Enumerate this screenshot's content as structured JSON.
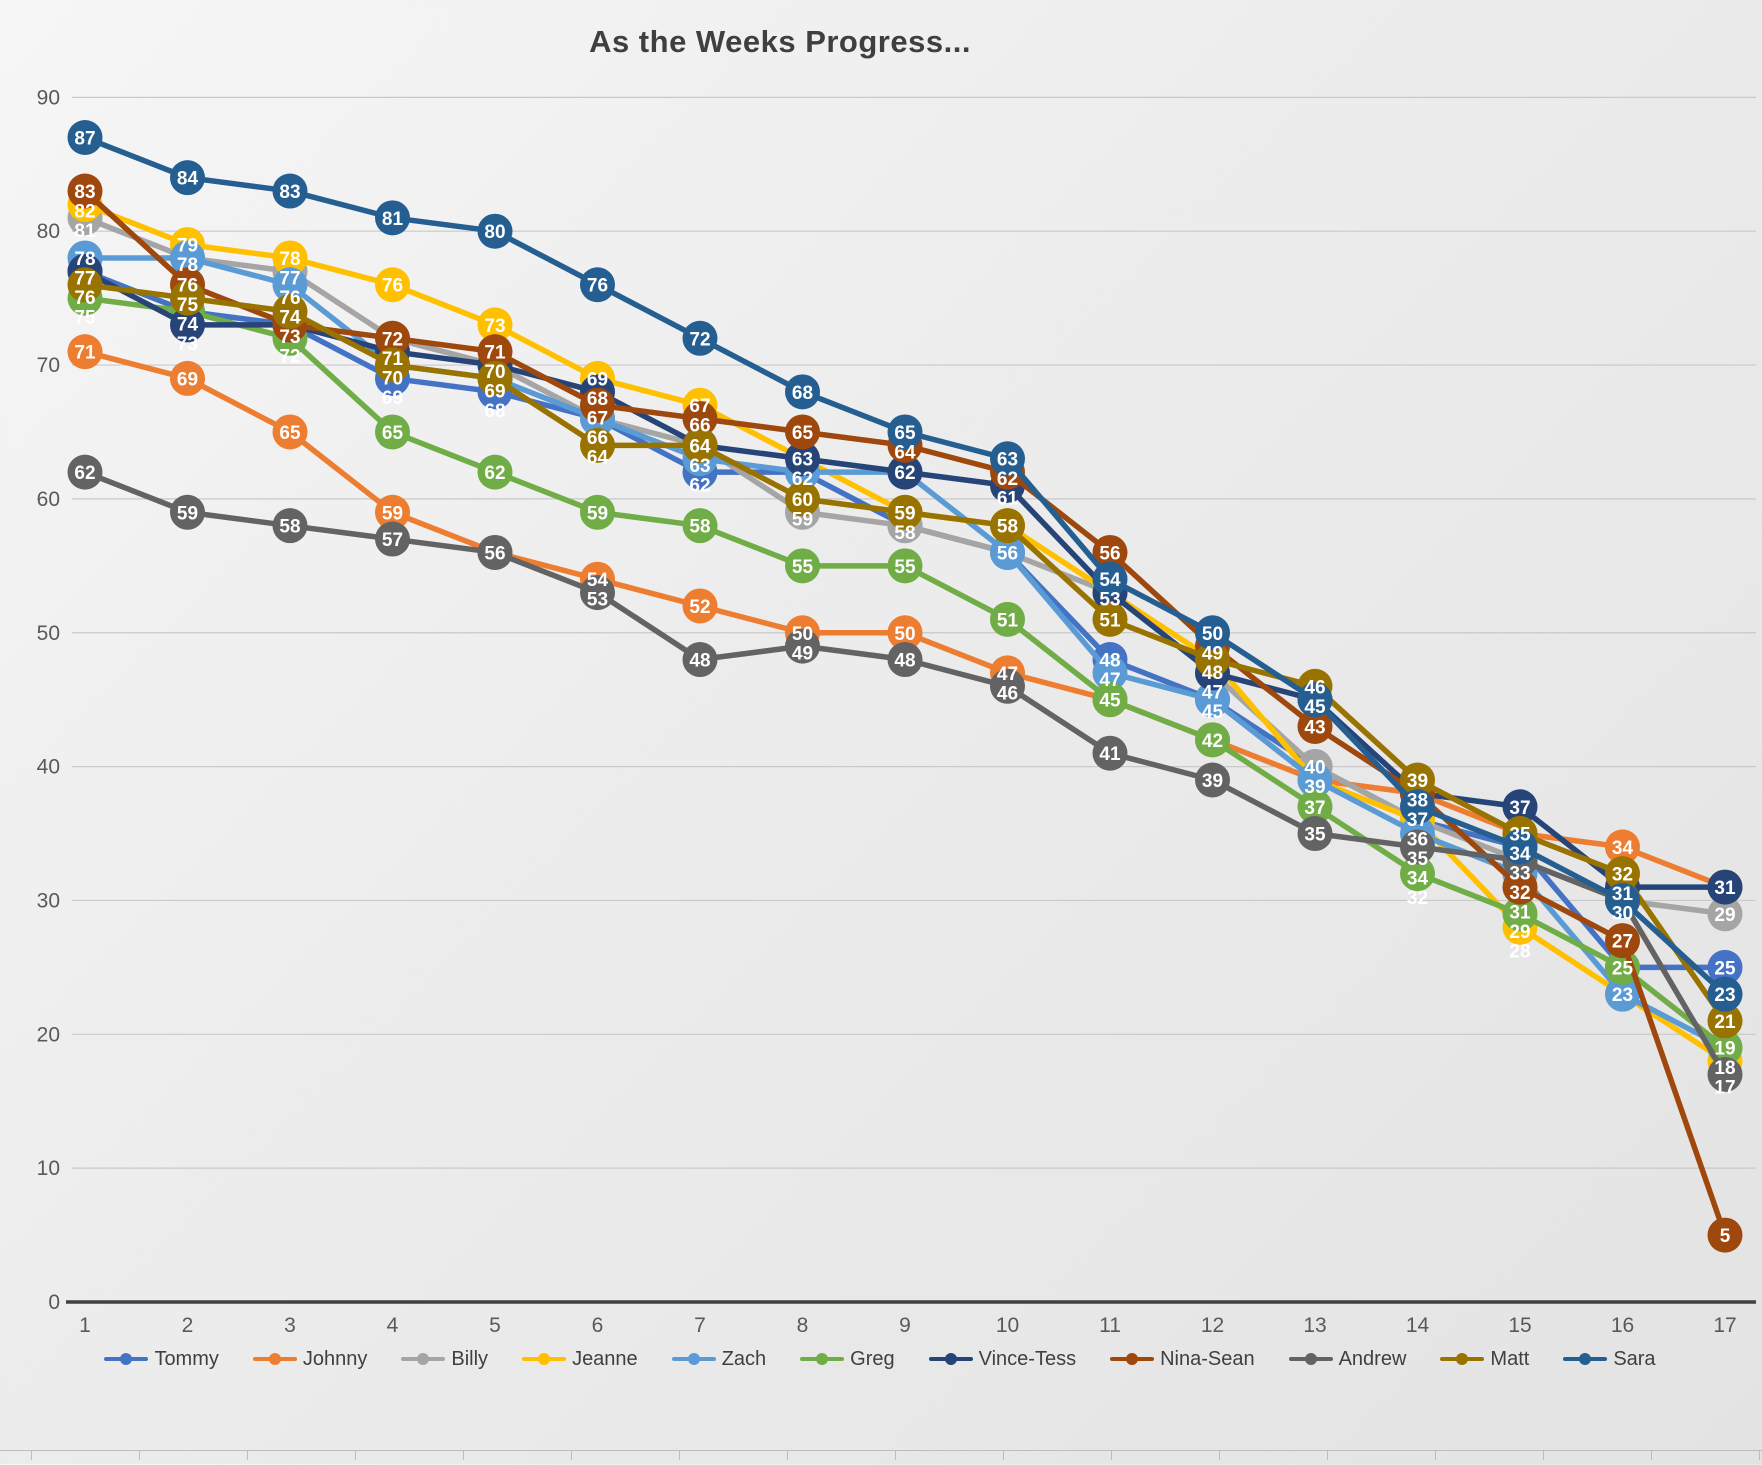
{
  "title": "As the Weeks Progress...",
  "axes": {
    "y_ticks": [
      "0",
      "10",
      "20",
      "30",
      "40",
      "50",
      "60",
      "70",
      "80",
      "90"
    ],
    "x_ticks": [
      "1",
      "2",
      "3",
      "4",
      "5",
      "6",
      "7",
      "8",
      "9",
      "10",
      "11",
      "12",
      "13",
      "14",
      "15",
      "16",
      "17"
    ]
  },
  "colors": {
    "grid": "#c9c9c9",
    "axis_line": "#404040",
    "tick_label": "#595959",
    "data_label": "#ffffff"
  },
  "chart_data": {
    "type": "line",
    "title": "As the Weeks Progress...",
    "xlabel": "",
    "ylabel": "",
    "x": [
      1,
      2,
      3,
      4,
      5,
      6,
      7,
      8,
      9,
      10,
      11,
      12,
      13,
      14,
      15,
      16,
      17
    ],
    "ylim": [
      0,
      90
    ],
    "grid": true,
    "legend_position": "bottom",
    "marker_style": "large-circle-with-value-label",
    "series": [
      {
        "name": "Tommy",
        "color": "#4472C4",
        "values": [
          77,
          74,
          73,
          69,
          68,
          66,
          62,
          62,
          58,
          56,
          48,
          45,
          40,
          36,
          34,
          25,
          25
        ]
      },
      {
        "name": "Johnny",
        "color": "#ED7D31",
        "values": [
          71,
          69,
          65,
          59,
          56,
          54,
          52,
          50,
          50,
          47,
          45,
          42,
          39,
          38,
          35,
          34,
          31
        ]
      },
      {
        "name": "Billy",
        "color": "#A5A5A5",
        "values": [
          81,
          78,
          77,
          72,
          70,
          66,
          64,
          59,
          58,
          56,
          53,
          47,
          40,
          36,
          33,
          30,
          29
        ]
      },
      {
        "name": "Jeanne",
        "color": "#FFC000",
        "values": [
          82,
          79,
          78,
          76,
          73,
          69,
          67,
          63,
          59,
          58,
          53,
          48,
          39,
          36,
          28,
          23,
          18
        ]
      },
      {
        "name": "Zach",
        "color": "#5B9BD5",
        "values": [
          78,
          78,
          76,
          70,
          69,
          66,
          63,
          62,
          62,
          56,
          47,
          45,
          39,
          35,
          32,
          23,
          19
        ]
      },
      {
        "name": "Greg",
        "color": "#70AD47",
        "values": [
          75,
          74,
          72,
          65,
          62,
          59,
          58,
          55,
          55,
          51,
          45,
          42,
          37,
          32,
          29,
          25,
          19
        ]
      },
      {
        "name": "Vince-Tess",
        "color": "#264478",
        "values": [
          77,
          73,
          73,
          71,
          70,
          68,
          64,
          63,
          62,
          61,
          53,
          47,
          45,
          38,
          37,
          31,
          31
        ]
      },
      {
        "name": "Nina-Sean",
        "color": "#9E480E",
        "values": [
          83,
          76,
          73,
          72,
          71,
          67,
          66,
          65,
          64,
          62,
          56,
          49,
          43,
          38,
          31,
          27,
          5
        ]
      },
      {
        "name": "Andrew",
        "color": "#636363",
        "values": [
          62,
          59,
          58,
          57,
          56,
          53,
          48,
          49,
          48,
          46,
          41,
          39,
          35,
          34,
          33,
          30,
          17
        ]
      },
      {
        "name": "Matt",
        "color": "#997300",
        "values": [
          76,
          75,
          74,
          70,
          69,
          64,
          64,
          60,
          59,
          58,
          51,
          48,
          46,
          39,
          35,
          32,
          21
        ]
      },
      {
        "name": "Sara",
        "color": "#255E91",
        "values": [
          87,
          84,
          83,
          81,
          80,
          76,
          72,
          68,
          65,
          63,
          54,
          50,
          45,
          37,
          34,
          30,
          23
        ]
      }
    ]
  }
}
